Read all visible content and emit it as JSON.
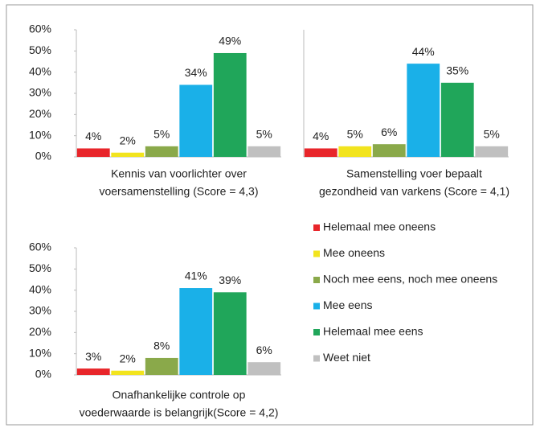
{
  "chart_data": [
    {
      "type": "bar",
      "xlabel": [
        "Kennis van voorlichter over",
        "voersamenstelling    (Score = 4,3)"
      ],
      "values": [
        4,
        2,
        5,
        34,
        49,
        5
      ],
      "value_labels": [
        "4%",
        "2%",
        "5%",
        "34%",
        "49%",
        "5%"
      ],
      "ylim": [
        0,
        60
      ],
      "yticks": [
        {
          "value": 0,
          "label": "0%"
        },
        {
          "value": 10,
          "label": "10%"
        },
        {
          "value": 20,
          "label": "20%"
        },
        {
          "value": 30,
          "label": "30%"
        },
        {
          "value": 40,
          "label": "40%"
        },
        {
          "value": 50,
          "label": "50%"
        },
        {
          "value": 60,
          "label": "60%"
        }
      ]
    },
    {
      "type": "bar",
      "xlabel": [
        "Samenstelling voer bepaalt",
        "gezondheid van varkens (Score = 4,1)"
      ],
      "values": [
        4,
        5,
        6,
        44,
        35,
        5
      ],
      "value_labels": [
        "4%",
        "5%",
        "6%",
        "44%",
        "35%",
        "5%"
      ],
      "ylim": [
        0,
        60
      ],
      "yticks": []
    },
    {
      "type": "bar",
      "xlabel": [
        "Onafhankelijke controle op",
        "voederwaarde is belangrijk(Score = 4,2)"
      ],
      "values": [
        3,
        2,
        8,
        41,
        39,
        6
      ],
      "value_labels": [
        "3%",
        "2%",
        "8%",
        "41%",
        "39%",
        "6%"
      ],
      "ylim": [
        0,
        60
      ],
      "yticks": [
        {
          "value": 0,
          "label": "0%"
        },
        {
          "value": 10,
          "label": "10%"
        },
        {
          "value": 20,
          "label": "20%"
        },
        {
          "value": 30,
          "label": "30%"
        },
        {
          "value": 40,
          "label": "40%"
        },
        {
          "value": 50,
          "label": "50%"
        },
        {
          "value": 60,
          "label": "60%"
        }
      ]
    }
  ],
  "legend": {
    "names": [
      "Helemaal mee oneens",
      "Mee oneens",
      "Noch mee eens, noch mee oneens",
      "Mee eens",
      "Helemaal mee eens",
      "Weet niet"
    ],
    "colors": [
      "#e8252a",
      "#f2e41e",
      "#8aa94a",
      "#1ab0e8",
      "#20a65a",
      "#c0c0c0"
    ]
  }
}
